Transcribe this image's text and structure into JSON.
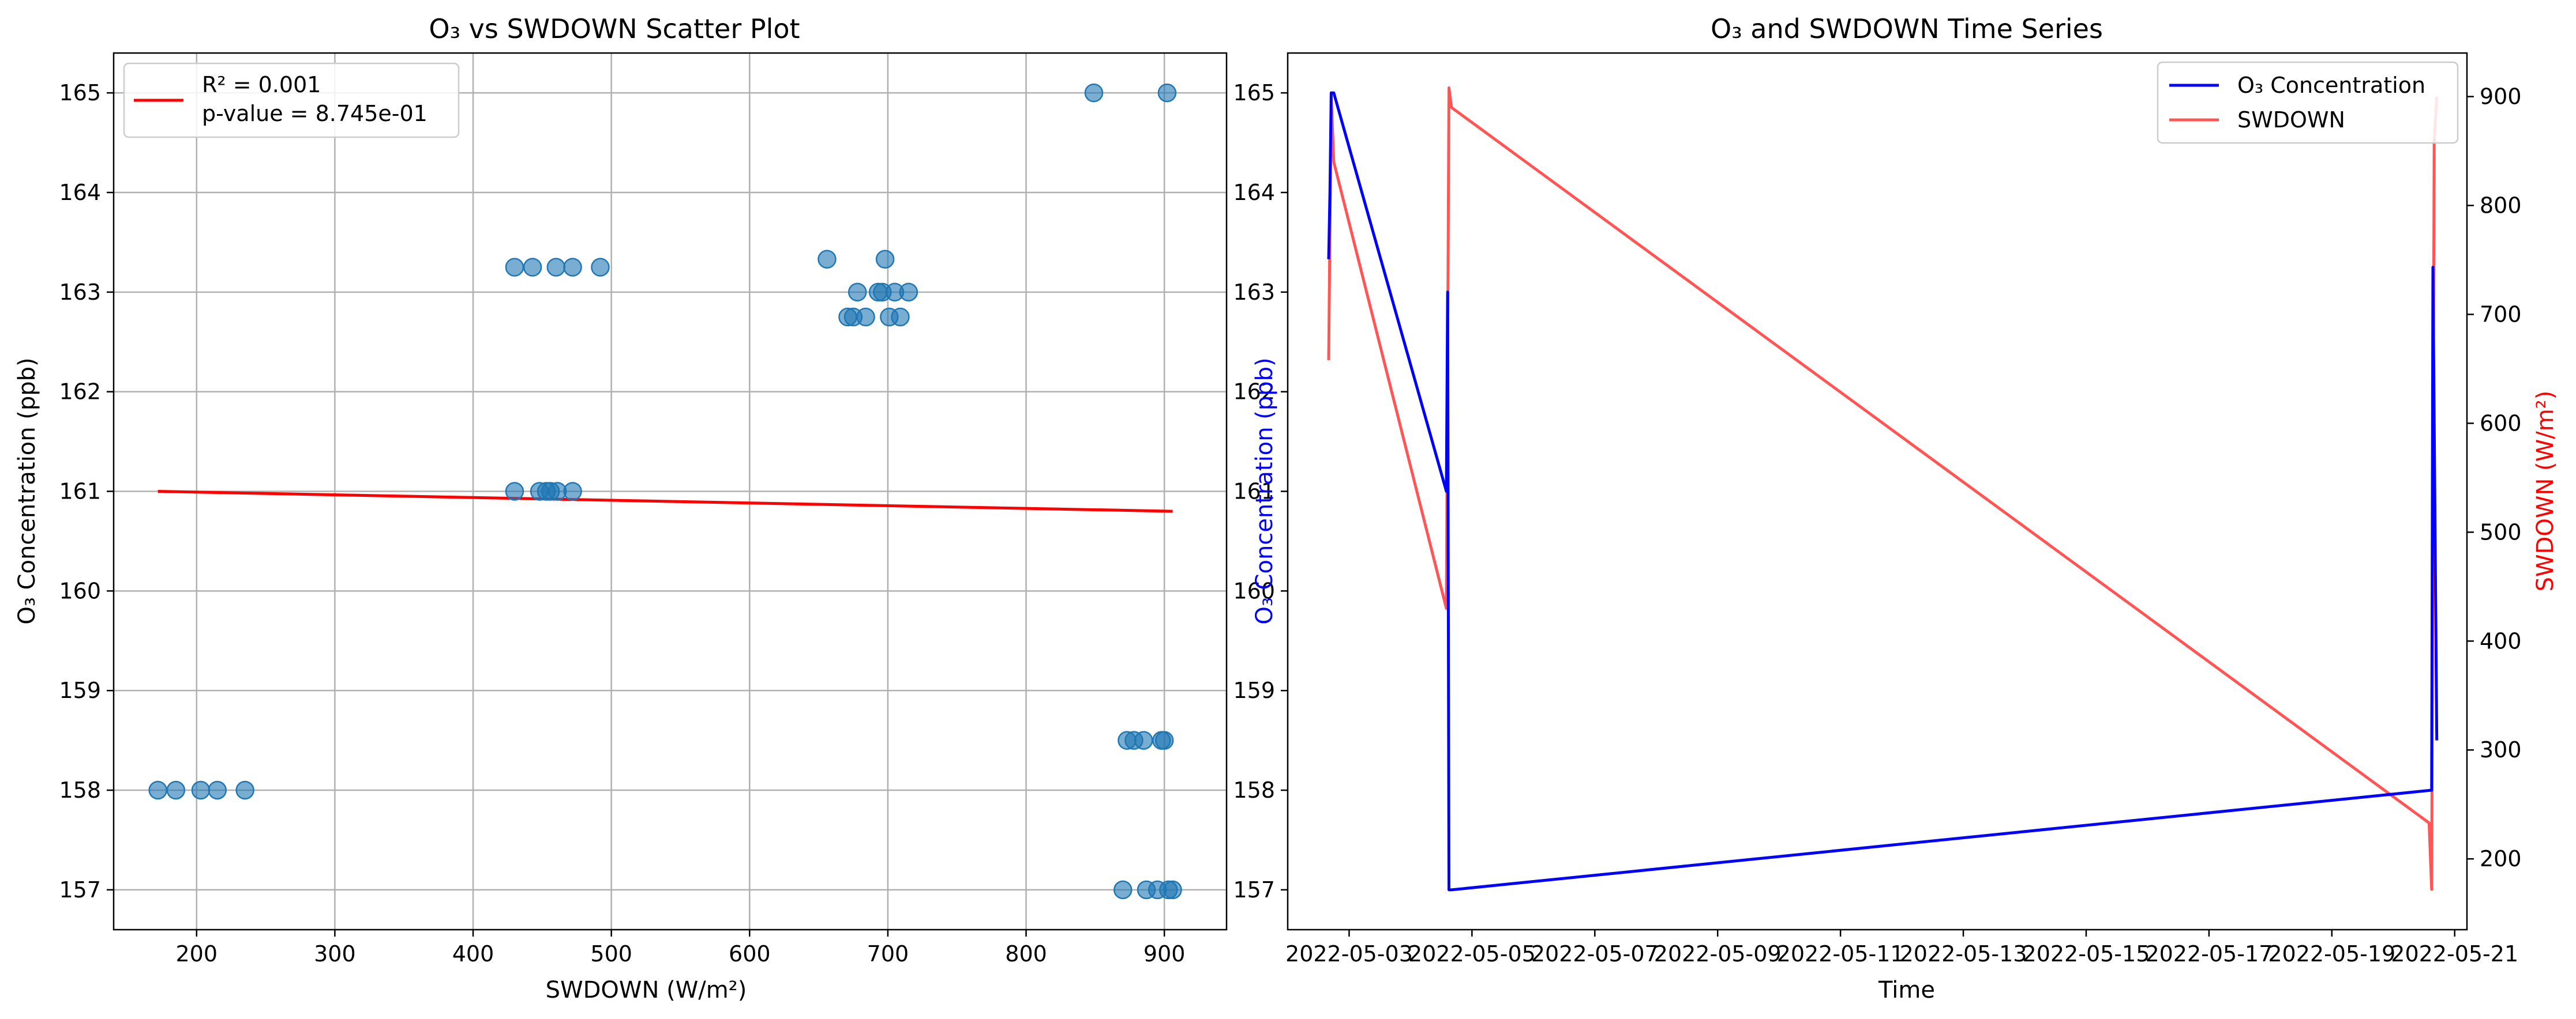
{
  "chart_data": [
    {
      "type": "scatter",
      "title": "O₃ vs SWDOWN Scatter Plot",
      "xlabel": "SWDOWN (W/m²)",
      "ylabel": "O₃ Concentration (ppb)",
      "xlim": [
        140,
        945
      ],
      "ylim": [
        156.6,
        165.4
      ],
      "xticks": [
        200,
        300,
        400,
        500,
        600,
        700,
        800,
        900
      ],
      "yticks": [
        157,
        158,
        159,
        160,
        161,
        162,
        163,
        164,
        165
      ],
      "grid": true,
      "legend_position": "top-left",
      "legend": [
        {
          "label_line1": "R² = 0.001",
          "label_line2": "p-value = 8.745e-01",
          "color": "#ff0000"
        }
      ],
      "colors": {
        "points": "#1f77b4",
        "fit": "#ff0000"
      },
      "points": [
        [
          849,
          165
        ],
        [
          902,
          165
        ],
        [
          430,
          163.25
        ],
        [
          443,
          163.25
        ],
        [
          460,
          163.25
        ],
        [
          472,
          163.25
        ],
        [
          492,
          163.25
        ],
        [
          656,
          163.33
        ],
        [
          698,
          163.33
        ],
        [
          678,
          163.0
        ],
        [
          693,
          163.0
        ],
        [
          696,
          163.0
        ],
        [
          705,
          163.0
        ],
        [
          715,
          163.0
        ],
        [
          671,
          162.75
        ],
        [
          675,
          162.75
        ],
        [
          684,
          162.75
        ],
        [
          701,
          162.75
        ],
        [
          709,
          162.75
        ],
        [
          430,
          161
        ],
        [
          448,
          161
        ],
        [
          453,
          161
        ],
        [
          456,
          161
        ],
        [
          461,
          161
        ],
        [
          472,
          161
        ],
        [
          172,
          158
        ],
        [
          185,
          158
        ],
        [
          203,
          158
        ],
        [
          215,
          158
        ],
        [
          235,
          158
        ],
        [
          873,
          158.5
        ],
        [
          878,
          158.5
        ],
        [
          885,
          158.5
        ],
        [
          898,
          158.5
        ],
        [
          900,
          158.5
        ],
        [
          870,
          157
        ],
        [
          887,
          157
        ],
        [
          895,
          157
        ],
        [
          903,
          157
        ],
        [
          906,
          157
        ]
      ],
      "fit_line": {
        "x": [
          172,
          906
        ],
        "y": [
          161.0,
          160.8
        ]
      }
    },
    {
      "type": "line",
      "title": "O₃ and SWDOWN Time Series",
      "xlabel": "Time",
      "ylabel_left": "O₃ Concentration (ppb)",
      "ylabel_right": "SWDOWN (W/m²)",
      "xlim": [
        "2022-05-02",
        "2022-05-21.2"
      ],
      "ylim_left": [
        156.6,
        165.4
      ],
      "ylim_right": [
        135,
        940
      ],
      "xticks": [
        "2022-05-03",
        "2022-05-05",
        "2022-05-07",
        "2022-05-09",
        "2022-05-11",
        "2022-05-13",
        "2022-05-15",
        "2022-05-17",
        "2022-05-19",
        "2022-05-21"
      ],
      "yticks_left": [
        157,
        158,
        159,
        160,
        161,
        162,
        163,
        164,
        165
      ],
      "yticks_right": [
        200,
        300,
        400,
        500,
        600,
        700,
        800,
        900
      ],
      "grid": false,
      "legend_position": "top-right",
      "series": [
        {
          "name": "O₃ Concentration",
          "color": "#0000ff",
          "axis": "left",
          "points": [
            [
              "2022-05-02 16:00",
              163.33
            ],
            [
              "2022-05-02 16:30",
              164.0
            ],
            [
              "2022-05-02 17:00",
              165.0
            ],
            [
              "2022-05-02 18:00",
              165.0
            ],
            [
              "2022-05-04 14:00",
              161.0
            ],
            [
              "2022-05-04 14:30",
              163.0
            ],
            [
              "2022-05-04 15:00",
              157.0
            ],
            [
              "2022-05-04 16:00",
              157.0
            ],
            [
              "2022-05-20 15:00",
              158.0
            ],
            [
              "2022-05-20 15:30",
              163.25
            ],
            [
              "2022-05-20 17:00",
              158.5
            ]
          ]
        },
        {
          "name": "SWDOWN",
          "color": "#ff5555",
          "axis": "right",
          "points": [
            [
              "2022-05-02 16:00",
              658
            ],
            [
              "2022-05-02 17:00",
              900
            ],
            [
              "2022-05-02 18:00",
              840
            ],
            [
              "2022-05-04 14:00",
              430
            ],
            [
              "2022-05-04 15:00",
              908
            ],
            [
              "2022-05-04 16:00",
              890
            ],
            [
              "2022-05-20 14:00",
              233
            ],
            [
              "2022-05-20 15:00",
              172
            ],
            [
              "2022-05-20 16:00",
              858
            ],
            [
              "2022-05-20 17:00",
              900
            ]
          ]
        }
      ]
    }
  ]
}
